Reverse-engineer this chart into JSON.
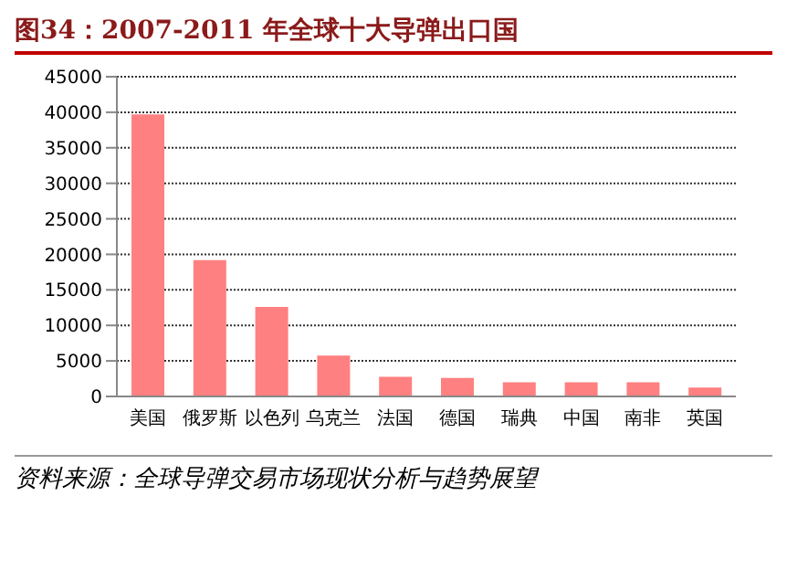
{
  "chart_data": {
    "type": "bar",
    "title": "图34：2007-2011 年全球十大导弹出口国",
    "categories": [
      "美国",
      "俄罗斯",
      "以色列",
      "乌克兰",
      "法国",
      "德国",
      "瑞典",
      "中国",
      "南非",
      "英国"
    ],
    "values": [
      39700,
      19200,
      12600,
      5750,
      2750,
      2600,
      2000,
      2000,
      2000,
      1250
    ],
    "color": "#ff8080",
    "ylim": [
      0,
      45000
    ],
    "yticks": [
      0,
      5000,
      10000,
      15000,
      20000,
      25000,
      30000,
      35000,
      40000,
      45000
    ],
    "grid": "y",
    "annotations": [
      "资料来源：全球导弹交易市场现状分析与趋势展望"
    ]
  }
}
